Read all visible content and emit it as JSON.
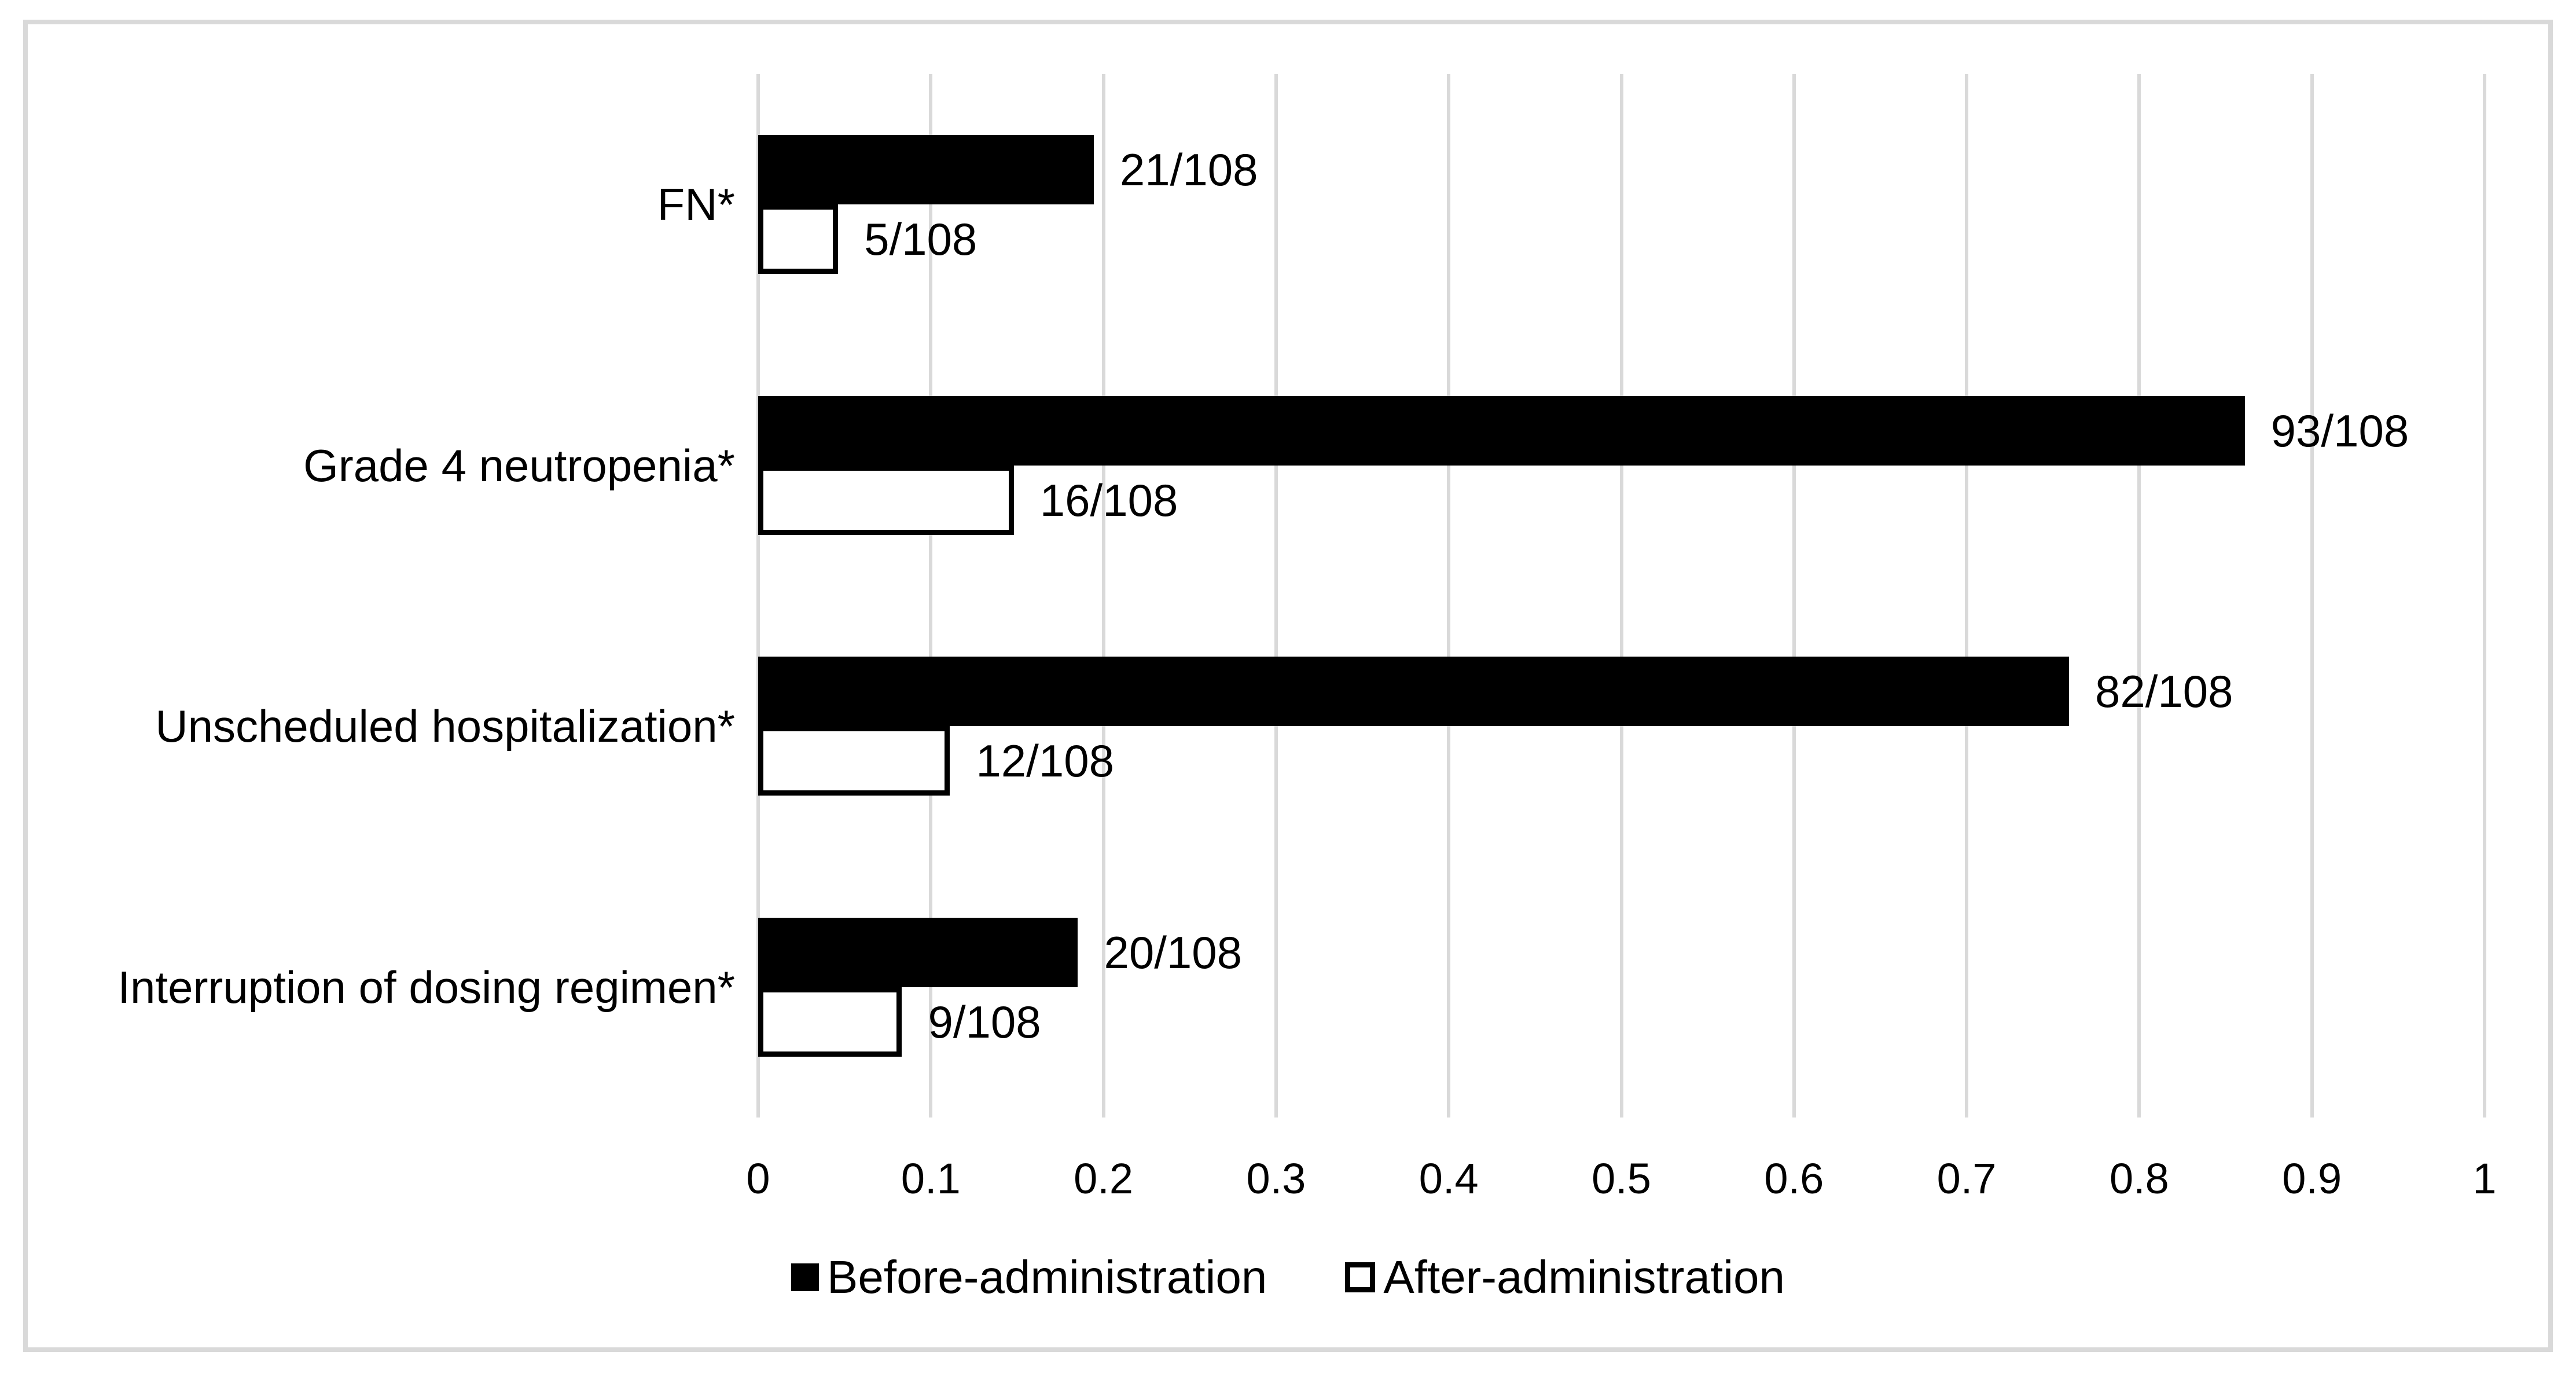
{
  "chart_data": {
    "type": "bar",
    "orientation": "horizontal",
    "title": "",
    "xlabel": "",
    "ylabel": "",
    "categories": [
      "FN*",
      "Grade 4 neutropenia*",
      "Unscheduled hospitalization*",
      "Interruption of dosing regimen*"
    ],
    "series": [
      {
        "name": "Before-administration",
        "values": [
          0.1944,
          0.8611,
          0.7593,
          0.1852
        ],
        "labels": [
          "21/108",
          "93/108",
          "82/108",
          "20/108"
        ],
        "fill": "#000000"
      },
      {
        "name": "After-administration",
        "values": [
          0.0463,
          0.1481,
          0.1111,
          0.0833
        ],
        "labels": [
          "5/108",
          "16/108",
          "12/108",
          "9/108"
        ],
        "fill": "#FFFFFF",
        "border": "#000000"
      }
    ],
    "xlim": [
      0,
      1
    ],
    "xticks": [
      0,
      0.1,
      0.2,
      0.3,
      0.4,
      0.5,
      0.6,
      0.7,
      0.8,
      0.9,
      1
    ],
    "tick_labels": [
      "0",
      "0.1",
      "0.2",
      "0.3",
      "0.4",
      "0.5",
      "0.6",
      "0.7",
      "0.8",
      "0.9",
      "1"
    ],
    "grid": "vertical",
    "legend_position": "bottom-center"
  },
  "colors": {
    "bar_fill": "#000000",
    "bar_empty_fill": "#FFFFFF",
    "bar_border": "#000000",
    "gridline": "#D9D9D9",
    "figure_border": "#D9D9D9",
    "text": "#000000",
    "background": "#FFFFFF"
  }
}
